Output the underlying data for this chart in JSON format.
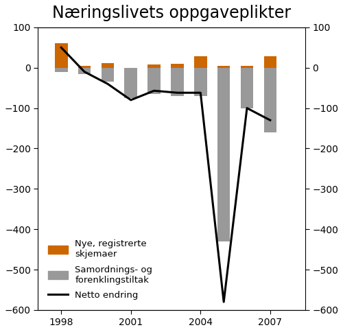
{
  "title": "Næringslivets oppgaveplikter",
  "years": [
    1998,
    1999,
    2000,
    2001,
    2002,
    2003,
    2004,
    2005,
    2006,
    2007
  ],
  "orange_bars": [
    60,
    5,
    12,
    0,
    8,
    10,
    28,
    5,
    5,
    28
  ],
  "gray_bars": [
    -10,
    -15,
    -35,
    -75,
    -65,
    -70,
    -70,
    -430,
    -100,
    -160
  ],
  "netto_line": [
    50,
    -10,
    -40,
    -80,
    -57,
    -62,
    -62,
    -580,
    -100,
    -130
  ],
  "ylim": [
    -600,
    100
  ],
  "yticks": [
    -600,
    -500,
    -400,
    -300,
    -200,
    -100,
    0,
    100
  ],
  "xticks": [
    1998,
    2001,
    2004,
    2007
  ],
  "bar_width": 0.55,
  "orange_color": "#CC6600",
  "gray_color": "#999999",
  "line_color": "#000000",
  "background_color": "#ffffff",
  "legend_labels": [
    "Nye, registrerte\nskjemaer",
    "Samordnings- og\nforenklingstiltak",
    "Netto endring"
  ],
  "title_fontsize": 17,
  "tick_fontsize": 10,
  "legend_fontsize": 9.5
}
